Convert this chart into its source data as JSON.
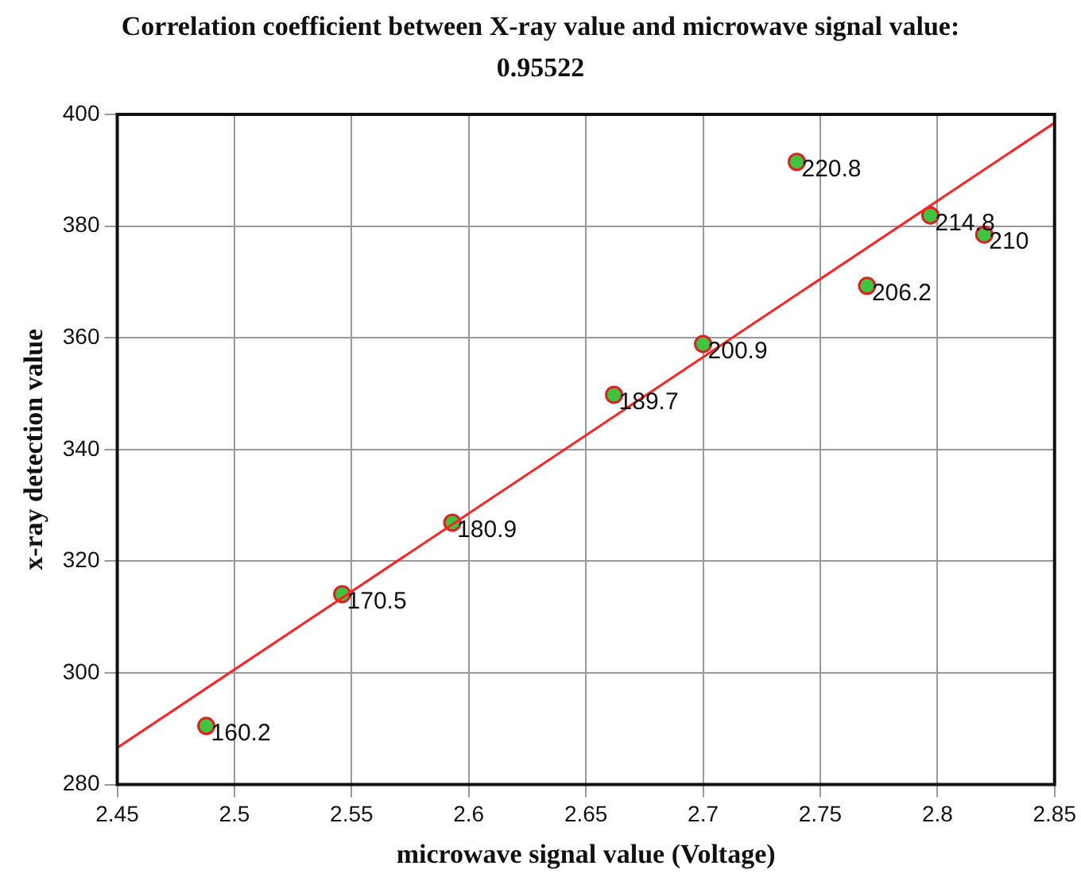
{
  "chart_data": {
    "type": "scatter",
    "title": "Correlation coefficient between X-ray value and microwave signal value: 0.95522",
    "xlabel": "microwave signal value (Voltage)",
    "ylabel": "x-ray detection value",
    "series": [
      {
        "type": "scatter",
        "color": "#3fc43f",
        "marker": "circle",
        "x": [
          2.488,
          2.546,
          2.593,
          2.662,
          2.7,
          2.77,
          2.74,
          2.797,
          2.82
        ],
        "values": [
          290.5,
          314.1,
          326.9,
          349.8,
          358.9,
          369.3,
          391.5,
          381.9,
          378.5
        ]
      },
      {
        "type": "line",
        "color": "#ff2020",
        "marker": "none",
        "line_style": "solid",
        "x": [
          2.45,
          2.85
        ],
        "values": [
          286.6,
          398.5
        ]
      }
    ],
    "annotations": [
      {
        "text": "160.2",
        "x": 2.488,
        "y": 290.5
      },
      {
        "text": "170.5",
        "x": 2.546,
        "y": 314.1
      },
      {
        "text": "180.9",
        "x": 2.593,
        "y": 326.9
      },
      {
        "text": "189.7",
        "x": 2.662,
        "y": 349.8
      },
      {
        "text": "200.9",
        "x": 2.7,
        "y": 358.9
      },
      {
        "text": "206.2",
        "x": 2.77,
        "y": 369.3
      },
      {
        "text": "220.8",
        "x": 2.74,
        "y": 391.5
      },
      {
        "text": "214.8",
        "x": 2.797,
        "y": 381.9
      },
      {
        "text": "210",
        "x": 2.82,
        "y": 378.5
      }
    ],
    "xlim": [
      2.45,
      2.85
    ],
    "ylim": [
      280,
      400
    ],
    "xticks": [
      2.45,
      2.5,
      2.55,
      2.6,
      2.65,
      2.7,
      2.75,
      2.8,
      2.85
    ],
    "yticks": [
      280,
      300,
      320,
      340,
      360,
      380,
      400
    ],
    "grid": true
  }
}
